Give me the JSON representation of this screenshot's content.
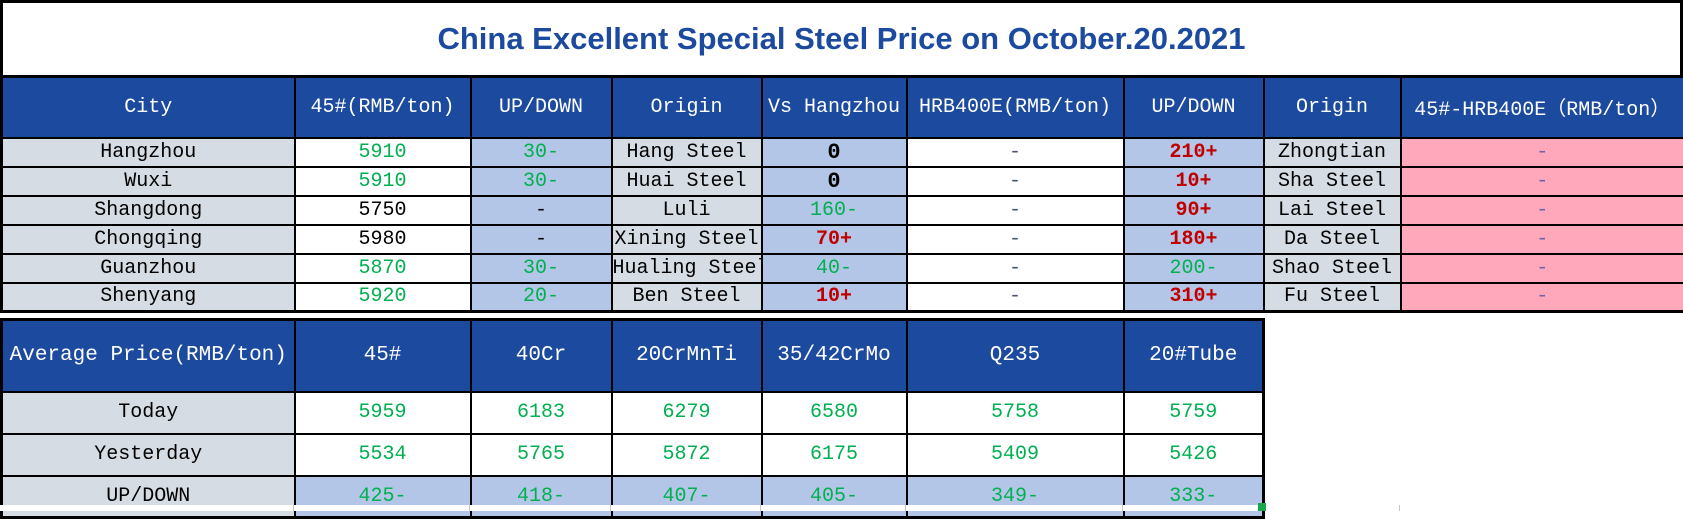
{
  "title": "China Excellent Special Steel Price on October.20.2021",
  "colors": {
    "title_blue": "#1b4a9e",
    "header_blue": "#1c4a9e",
    "light_blue": "#b4c6e7",
    "gray": "#d6dce4",
    "pink": "#ffa8bc",
    "green": "#00b050",
    "red": "#c00000",
    "slate": "#44546a",
    "purple": "#7161a5",
    "selection_green": "#17a84b"
  },
  "main_table": {
    "headers": [
      "City",
      "45#(RMB/ton)",
      "UP/DOWN",
      "Origin",
      "Vs Hangzhou",
      "HRB400E(RMB/ton)",
      "UP/DOWN",
      "Origin",
      "45#-HRB400E（RMB/ton）"
    ],
    "column_keys": [
      "city",
      "price-45",
      "updown-45",
      "origin-45",
      "vs-hangzhou",
      "price-hrb400e",
      "updown-hrb400e",
      "origin-hrb400e",
      "diff-45-hrb400e"
    ],
    "rows": [
      [
        {
          "t": "Hangzhou"
        },
        {
          "t": "5910",
          "c": "green"
        },
        {
          "t": "30-",
          "c": "green"
        },
        {
          "t": "Hang Steel"
        },
        {
          "t": "0",
          "c": "bold"
        },
        {
          "t": "-",
          "c": "slate"
        },
        {
          "t": "210+",
          "c": "red"
        },
        {
          "t": "Zhongtian"
        },
        {
          "t": "-",
          "c": "purple"
        }
      ],
      [
        {
          "t": "Wuxi"
        },
        {
          "t": "5910",
          "c": "green"
        },
        {
          "t": "30-",
          "c": "green"
        },
        {
          "t": "Huai Steel"
        },
        {
          "t": "0",
          "c": "bold"
        },
        {
          "t": "-",
          "c": "slate"
        },
        {
          "t": "10+",
          "c": "red"
        },
        {
          "t": "Sha Steel"
        },
        {
          "t": "-",
          "c": "purple"
        }
      ],
      [
        {
          "t": "Shangdong"
        },
        {
          "t": "5750"
        },
        {
          "t": "-"
        },
        {
          "t": "Luli"
        },
        {
          "t": "160-",
          "c": "green"
        },
        {
          "t": "-",
          "c": "slate"
        },
        {
          "t": "90+",
          "c": "red"
        },
        {
          "t": "Lai Steel"
        },
        {
          "t": "-",
          "c": "purple"
        }
      ],
      [
        {
          "t": "Chongqing"
        },
        {
          "t": "5980"
        },
        {
          "t": "-"
        },
        {
          "t": "Xining Steel"
        },
        {
          "t": "70+",
          "c": "red"
        },
        {
          "t": "-",
          "c": "slate"
        },
        {
          "t": "180+",
          "c": "red"
        },
        {
          "t": "Da Steel"
        },
        {
          "t": "-",
          "c": "purple"
        }
      ],
      [
        {
          "t": "Guanzhou"
        },
        {
          "t": "5870",
          "c": "green"
        },
        {
          "t": "30-",
          "c": "green"
        },
        {
          "t": "Hualing Steel"
        },
        {
          "t": "40-",
          "c": "green"
        },
        {
          "t": "-",
          "c": "slate"
        },
        {
          "t": "200-",
          "c": "green"
        },
        {
          "t": "Shao Steel"
        },
        {
          "t": "-",
          "c": "purple"
        }
      ],
      [
        {
          "t": "Shenyang"
        },
        {
          "t": "5920",
          "c": "green"
        },
        {
          "t": "20-",
          "c": "green"
        },
        {
          "t": "Ben Steel"
        },
        {
          "t": "10+",
          "c": "red"
        },
        {
          "t": "-",
          "c": "slate"
        },
        {
          "t": "310+",
          "c": "red"
        },
        {
          "t": "Fu Steel"
        },
        {
          "t": "-",
          "c": "purple"
        }
      ]
    ]
  },
  "average_table": {
    "headers": [
      "Average Price(RMB/ton)",
      "45#",
      "40Cr",
      "20CrMnTi",
      "35/42CrMo",
      "Q235",
      "20#Tube"
    ],
    "rows": [
      {
        "label": "Today",
        "values": [
          "5959",
          "6183",
          "6279",
          "6580",
          "5758",
          "5759"
        ],
        "value_color": "green"
      },
      {
        "label": "Yesterday",
        "values": [
          "5534",
          "5765",
          "5872",
          "6175",
          "5409",
          "5426"
        ],
        "value_color": "green"
      },
      {
        "label": "UP/DOWN",
        "values": [
          "425-",
          "418-",
          "407-",
          "405-",
          "349-",
          "333-"
        ],
        "value_color": "green"
      }
    ]
  }
}
